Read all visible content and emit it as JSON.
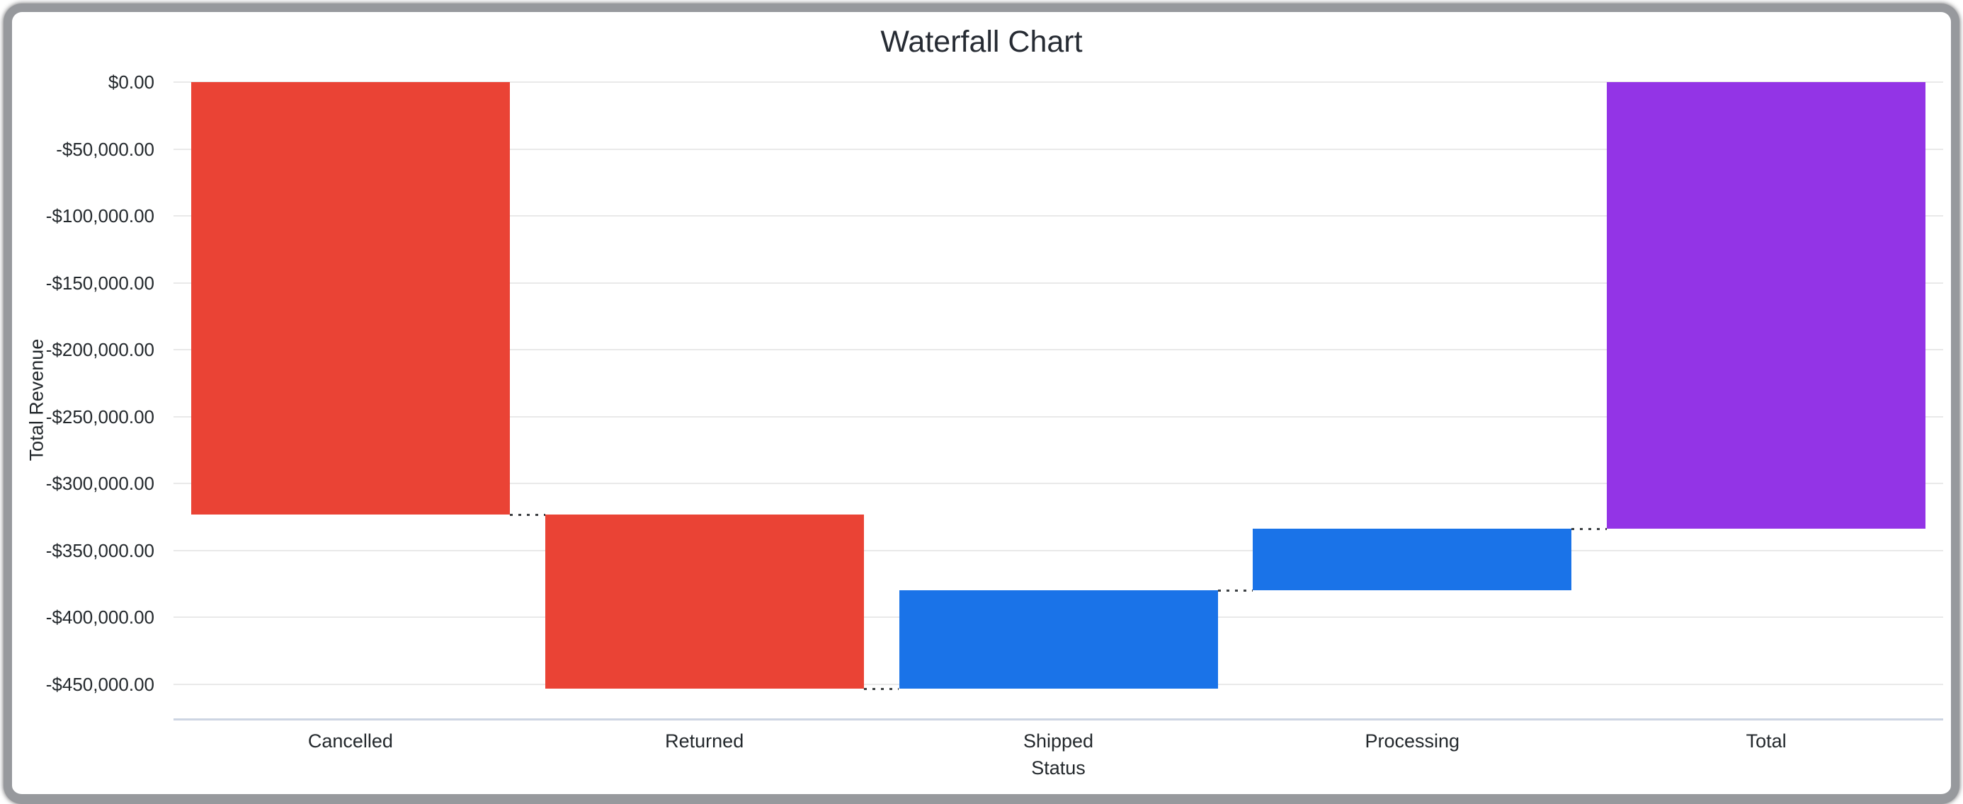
{
  "window": {
    "frame_color": "#97999d",
    "background_color": "#ffffff"
  },
  "chart_data": {
    "type": "bar",
    "subtype": "waterfall",
    "title": "Waterfall Chart",
    "xlabel": "Status",
    "ylabel": "Total Revenue",
    "categories": [
      "Cancelled",
      "Returned",
      "Shipped",
      "Processing",
      "Total"
    ],
    "steps": [
      {
        "label": "Cancelled",
        "change": -323000,
        "start": 0,
        "end": -323000,
        "role": "decrease"
      },
      {
        "label": "Returned",
        "change": -130000,
        "start": -323000,
        "end": -453000,
        "role": "decrease"
      },
      {
        "label": "Shipped",
        "change": 73500,
        "start": -453000,
        "end": -379500,
        "role": "increase"
      },
      {
        "label": "Processing",
        "change": 45800,
        "start": -379500,
        "end": -333700,
        "role": "increase"
      },
      {
        "label": "Total",
        "change": -333700,
        "start": 0,
        "end": -333700,
        "role": "total"
      }
    ],
    "y_axis": {
      "ticks": [
        {
          "value": 0,
          "label": "$0.00"
        },
        {
          "value": -50000,
          "label": "-$50,000.00"
        },
        {
          "value": -100000,
          "label": "-$100,000.00"
        },
        {
          "value": -150000,
          "label": "-$150,000.00"
        },
        {
          "value": -200000,
          "label": "-$200,000.00"
        },
        {
          "value": -250000,
          "label": "-$250,000.00"
        },
        {
          "value": -300000,
          "label": "-$300,000.00"
        },
        {
          "value": -350000,
          "label": "-$350,000.00"
        },
        {
          "value": -400000,
          "label": "-$400,000.00"
        },
        {
          "value": -450000,
          "label": "-$450,000.00"
        }
      ],
      "ylim": [
        -476000,
        0
      ]
    },
    "colors": {
      "decrease": "#EA4335",
      "increase": "#1A73E8",
      "total": "#9334E6",
      "gridline": "#e9e9e9",
      "baseline": "#cdd5e3",
      "connector": "#3c4043",
      "text": "#23282c"
    },
    "legend": "none",
    "grid": true,
    "connector_style": "dotted"
  }
}
